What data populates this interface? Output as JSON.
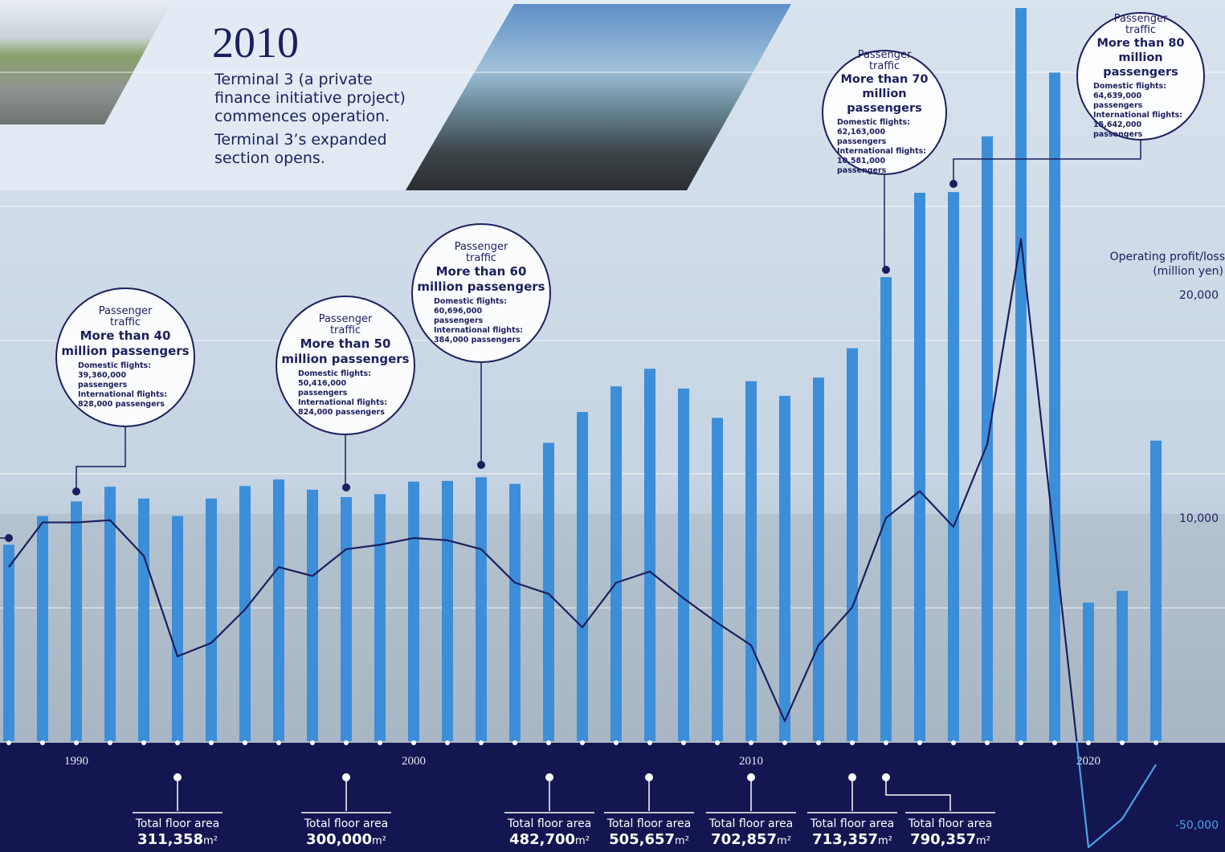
{
  "header": {
    "year": "2010",
    "lines": [
      "Terminal 3 (a private",
      "finance initiative project)",
      "commences operation.",
      "Terminal 3’s expanded",
      "section opens."
    ]
  },
  "chart_data": {
    "type": "bar",
    "categories": [
      null,
      null,
      "1990",
      null,
      null,
      null,
      null,
      null,
      null,
      null,
      null,
      null,
      "2000",
      null,
      null,
      null,
      null,
      null,
      null,
      null,
      null,
      null,
      "2010",
      null,
      null,
      null,
      null,
      null,
      null,
      null,
      null,
      null,
      "2020",
      null,
      null
    ],
    "values": [
      26.8,
      30.7,
      32.7,
      34.7,
      33.1,
      30.7,
      33.1,
      34.8,
      35.7,
      34.3,
      33.3,
      33.7,
      35.4,
      35.5,
      36.0,
      35.1,
      40.7,
      44.9,
      48.4,
      50.8,
      48.1,
      44.1,
      49.1,
      47.1,
      49.6,
      53.6,
      63.3,
      74.8,
      74.9,
      82.5,
      100,
      91.2,
      18.9,
      20.5,
      41.0
    ],
    "color": "#3d8ed8",
    "ylim": [
      0,
      100
    ],
    "line": {
      "type": "line",
      "axis": "y2",
      "color": "#1b1f5e",
      "color_below_zero": "#4aa3e8",
      "values": [
        7800,
        9800,
        9800,
        9900,
        8300,
        3800,
        4400,
        5900,
        7800,
        7400,
        8600,
        8800,
        9100,
        9000,
        8600,
        7100,
        6600,
        5100,
        7100,
        7600,
        6400,
        5300,
        4300,
        900,
        4300,
        6000,
        10000,
        11200,
        9600,
        13300,
        22500,
        8900,
        -63600,
        -46600,
        -14000
      ]
    },
    "y2label": [
      "Operating profit/loss",
      "(million yen)"
    ],
    "y2lim": [
      -65000,
      25000
    ],
    "y2break": 0,
    "y2ticks": [
      {
        "value": 20000,
        "label": "20,000"
      },
      {
        "value": 10000,
        "label": "10,000"
      },
      {
        "value": -50000,
        "label": "-50,000"
      }
    ]
  },
  "callouts": [
    {
      "title": "Passenger traffic",
      "headline": "More than 40 million passengers",
      "domestic_label": "Domestic flights:",
      "domestic": "39,360,000 passengers",
      "intl_label": "International flights:",
      "intl": "828,000 passengers"
    },
    {
      "title": "Passenger traffic",
      "headline": "More than 50 million passengers",
      "domestic_label": "Domestic flights:",
      "domestic": "50,416,000 passengers",
      "intl_label": "International flights:",
      "intl": "824,000 passengers"
    },
    {
      "title": "Passenger traffic",
      "headline": "More than 60 million passengers",
      "domestic_label": "Domestic flights:",
      "domestic": "60,696,000 passengers",
      "intl_label": "International flights:",
      "intl": "384,000 passengers"
    },
    {
      "title": "Passenger traffic",
      "headline": "More than 70 million passengers",
      "domestic_label": "Domestic flights:",
      "domestic": "62,163,000 passengers",
      "intl_label": "International flights:",
      "intl": "10,581,000 passengers"
    },
    {
      "title": "Passenger traffic",
      "headline": "More than 80 million passengers",
      "domestic_label": "Domestic flights:",
      "domestic": "64,639,000 passengers",
      "intl_label": "International flights:",
      "intl": "15,642,000 passengers"
    }
  ],
  "floor_areas": {
    "label": "Total floor area",
    "unit": "m²",
    "values": [
      "311,358",
      "300,000",
      "482,700",
      "505,657",
      "702,857",
      "713,357",
      "790,357"
    ]
  }
}
